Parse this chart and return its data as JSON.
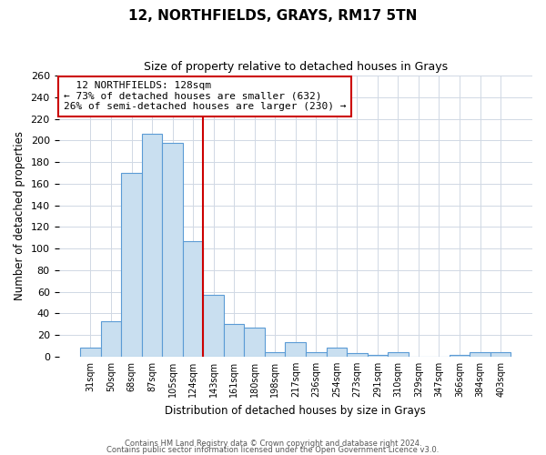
{
  "title": "12, NORTHFIELDS, GRAYS, RM17 5TN",
  "subtitle": "Size of property relative to detached houses in Grays",
  "xlabel": "Distribution of detached houses by size in Grays",
  "ylabel": "Number of detached properties",
  "bar_labels": [
    "31sqm",
    "50sqm",
    "68sqm",
    "87sqm",
    "105sqm",
    "124sqm",
    "143sqm",
    "161sqm",
    "180sqm",
    "198sqm",
    "217sqm",
    "236sqm",
    "254sqm",
    "273sqm",
    "291sqm",
    "310sqm",
    "329sqm",
    "347sqm",
    "366sqm",
    "384sqm",
    "403sqm"
  ],
  "bar_values": [
    8,
    33,
    170,
    206,
    198,
    107,
    57,
    30,
    27,
    4,
    13,
    4,
    8,
    3,
    2,
    4,
    0,
    0,
    2,
    4,
    4
  ],
  "bar_color": "#c9dff0",
  "bar_edge_color": "#5b9bd5",
  "ylim": [
    0,
    260
  ],
  "yticks": [
    0,
    20,
    40,
    60,
    80,
    100,
    120,
    140,
    160,
    180,
    200,
    220,
    240,
    260
  ],
  "red_line_color": "#cc0000",
  "annotation_title": "12 NORTHFIELDS: 128sqm",
  "annotation_line1": "← 73% of detached houses are smaller (632)",
  "annotation_line2": "26% of semi-detached houses are larger (230) →",
  "annotation_box_edge": "#cc0000",
  "footnote1": "Contains HM Land Registry data © Crown copyright and database right 2024.",
  "footnote2": "Contains public sector information licensed under the Open Government Licence v3.0.",
  "background_color": "#ffffff",
  "grid_color": "#d0d8e4"
}
